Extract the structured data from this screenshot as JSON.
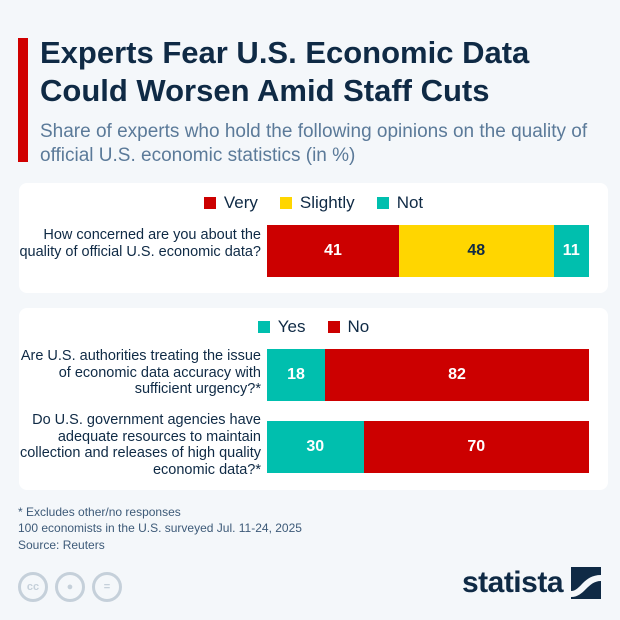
{
  "title": "Experts Fear U.S. Economic Data Could Worsen Amid Staff Cuts",
  "subtitle": "Share of experts who hold the following opinions on the quality of official U.S. economic statistics (in %)",
  "chart_data": [
    {
      "type": "bar",
      "orientation": "horizontal",
      "stacked": true,
      "categories": [
        "How concerned are you about the quality of official U.S. economic data?"
      ],
      "legend": "top",
      "series": [
        {
          "name": "Very",
          "values": [
            41
          ],
          "color": "#cc0000"
        },
        {
          "name": "Slightly",
          "values": [
            48
          ],
          "color": "#ffd600"
        },
        {
          "name": "Not",
          "values": [
            11
          ],
          "color": "#00bfae"
        }
      ]
    },
    {
      "type": "bar",
      "orientation": "horizontal",
      "stacked": true,
      "categories": [
        "Are U.S. authorities treating the issue of economic data accuracy with sufficient urgency?*",
        "Do U.S. government agencies have adequate resources to maintain collection and releases of high quality economic data?*"
      ],
      "legend": "top",
      "series": [
        {
          "name": "Yes",
          "values": [
            18,
            30
          ],
          "color": "#00bfae"
        },
        {
          "name": "No",
          "values": [
            82,
            70
          ],
          "color": "#cc0000"
        }
      ]
    }
  ],
  "footer": {
    "note1": "* Excludes other/no responses",
    "note2": "100 economists in the U.S. surveyed Jul. 11-24, 2025",
    "source": "Source: Reuters",
    "brand": "statista",
    "license_icons": [
      "cc-icon",
      "by-icon",
      "nd-icon"
    ]
  }
}
